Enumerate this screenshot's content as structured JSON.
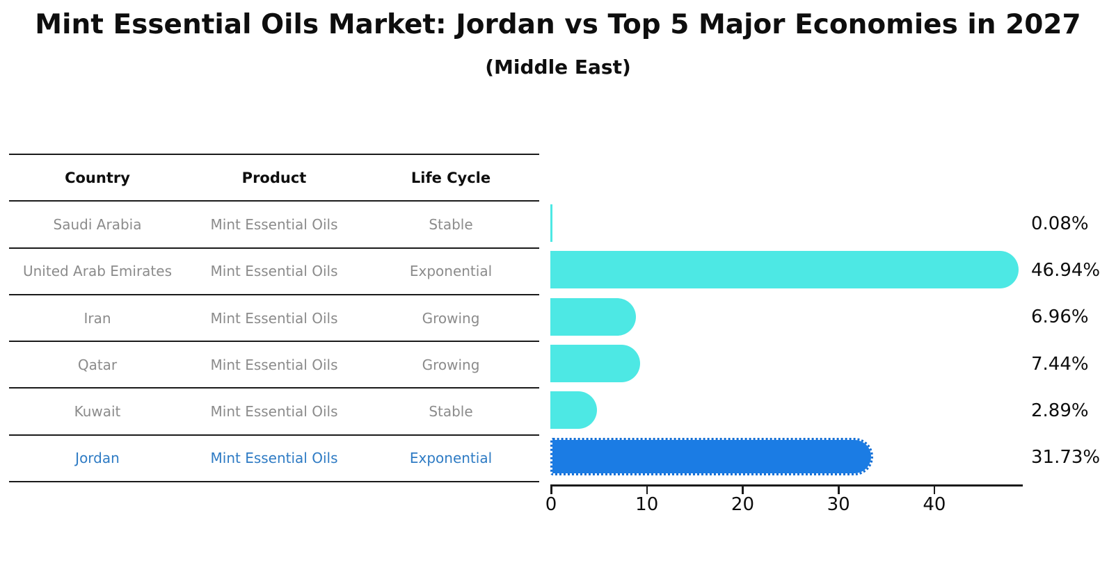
{
  "title": "Mint Essential Oils Market: Jordan vs Top 5 Major Economies in 2027",
  "subtitle": "(Middle East)",
  "table": {
    "headers": [
      "Country",
      "Product",
      "Life Cycle"
    ],
    "rows": [
      {
        "country": "Saudi Arabia",
        "product": "Mint Essential Oils",
        "life_cycle": "Stable",
        "highlighted": false
      },
      {
        "country": "United Arab Emirates",
        "product": "Mint Essential Oils",
        "life_cycle": "Exponential",
        "highlighted": false
      },
      {
        "country": "Iran",
        "product": "Mint Essential Oils",
        "life_cycle": "Growing",
        "highlighted": false
      },
      {
        "country": "Qatar",
        "product": "Mint Essential Oils",
        "life_cycle": "Growing",
        "highlighted": false
      },
      {
        "country": "Kuwait",
        "product": "Mint Essential Oils",
        "life_cycle": "Stable",
        "highlighted": false
      },
      {
        "country": "Jordan",
        "product": "Mint Essential Oils",
        "life_cycle": "Exponential",
        "highlighted": true
      }
    ]
  },
  "chart_data": {
    "type": "bar",
    "orientation": "horizontal",
    "title": "Mint Essential Oils Market: Jordan vs Top 5 Major Economies in 2027",
    "subtitle": "(Middle East)",
    "categories": [
      "Saudi Arabia",
      "United Arab Emirates",
      "Iran",
      "Qatar",
      "Kuwait",
      "Jordan"
    ],
    "values": [
      0.08,
      46.94,
      6.96,
      7.44,
      2.89,
      31.73
    ],
    "value_labels": [
      "0.08%",
      "46.94%",
      "6.96%",
      "7.44%",
      "2.89%",
      "31.73%"
    ],
    "xlabel": "",
    "ylabel": "",
    "xlim": [
      0,
      49.3
    ],
    "xticks": [
      0,
      10,
      20,
      30,
      40
    ],
    "grid": false,
    "legend": false,
    "bar_color": "#4de8e4",
    "highlight_bar_color": "#1b7ce4",
    "highlight_text_color": "#2e7bc4",
    "highlight_index": 5,
    "highlight_style": "dotted-border"
  }
}
